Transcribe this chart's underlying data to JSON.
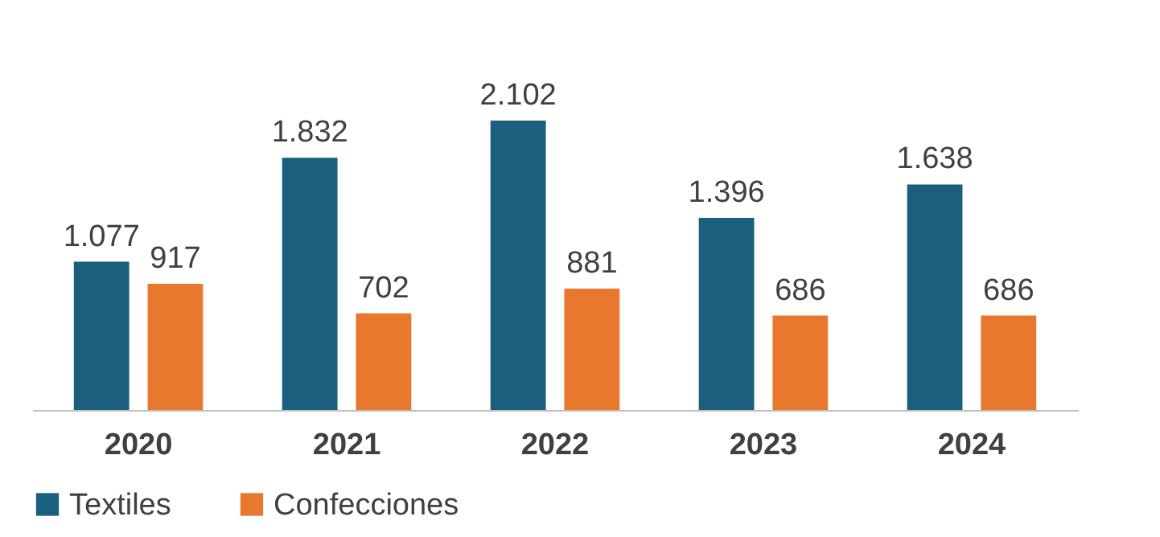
{
  "chart_data": {
    "type": "bar",
    "categories": [
      "2020",
      "2021",
      "2022",
      "2023",
      "2024"
    ],
    "series": [
      {
        "name": "Textiles",
        "color": "#1b5e7e",
        "values": [
          1077,
          1832,
          2102,
          1396,
          1638
        ],
        "value_labels": [
          "1.077",
          "1.832",
          "2.102",
          "1.396",
          "1.638"
        ]
      },
      {
        "name": "Confecciones",
        "color": "#e9782f",
        "values": [
          917,
          702,
          881,
          686,
          686
        ],
        "value_labels": [
          "917",
          "702",
          "881",
          "686",
          "686"
        ]
      }
    ],
    "legend": "bottom",
    "grid": false
  }
}
